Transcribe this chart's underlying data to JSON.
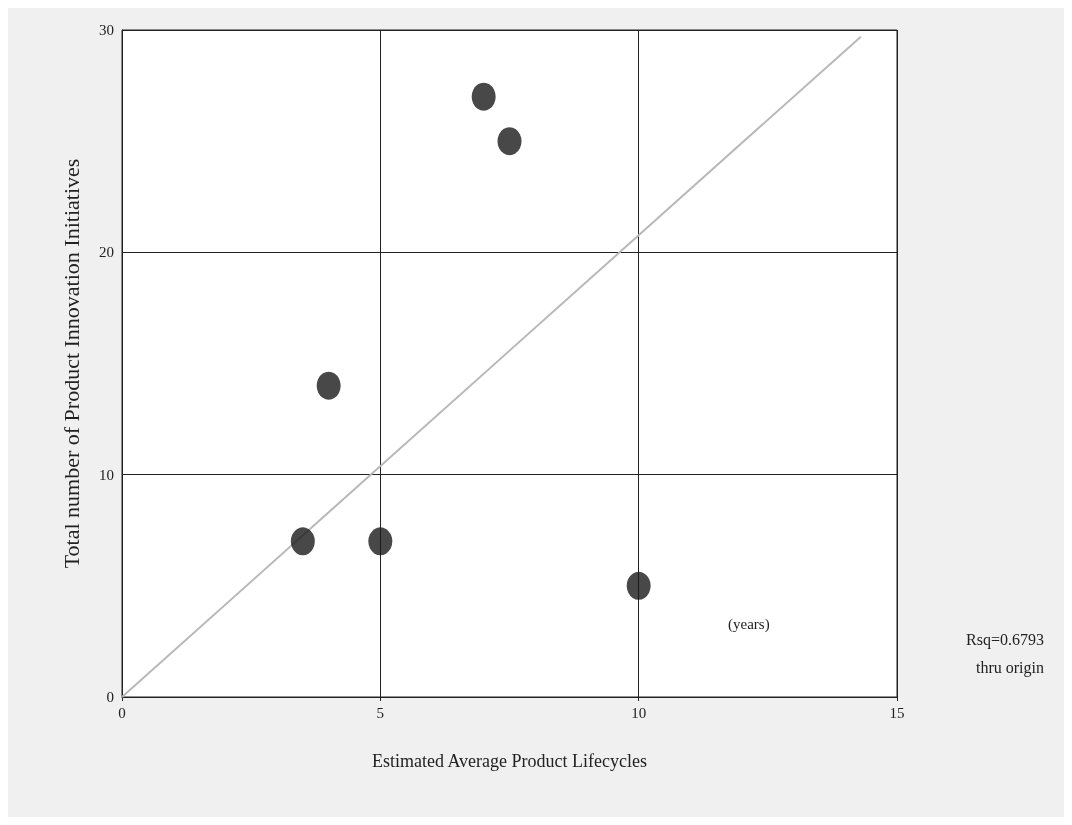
{
  "chart_data": {
    "type": "scatter",
    "xlabel": "Estimated Average Product Lifecycles",
    "ylabel": "Total number of Product Innovation Initiatives",
    "xlim": [
      0,
      15
    ],
    "ylim": [
      0,
      30
    ],
    "xticks": [
      0,
      5,
      10,
      15
    ],
    "yticks": [
      0,
      10,
      20,
      30
    ],
    "grid": true,
    "series": [
      {
        "marker": "circle",
        "color": "#1a1a1a",
        "x": [
          7,
          7.5,
          4,
          3.5,
          5,
          10
        ],
        "values": [
          27,
          25,
          14,
          7,
          7,
          5
        ]
      },
      {
        "type": "line",
        "marker": "none",
        "color": "#b8b8b8",
        "x": [
          0,
          14.3
        ],
        "values": [
          0,
          29.7
        ]
      }
    ],
    "annotations": [
      "(years)",
      "Rsq=0.6793",
      "thru origin"
    ]
  }
}
